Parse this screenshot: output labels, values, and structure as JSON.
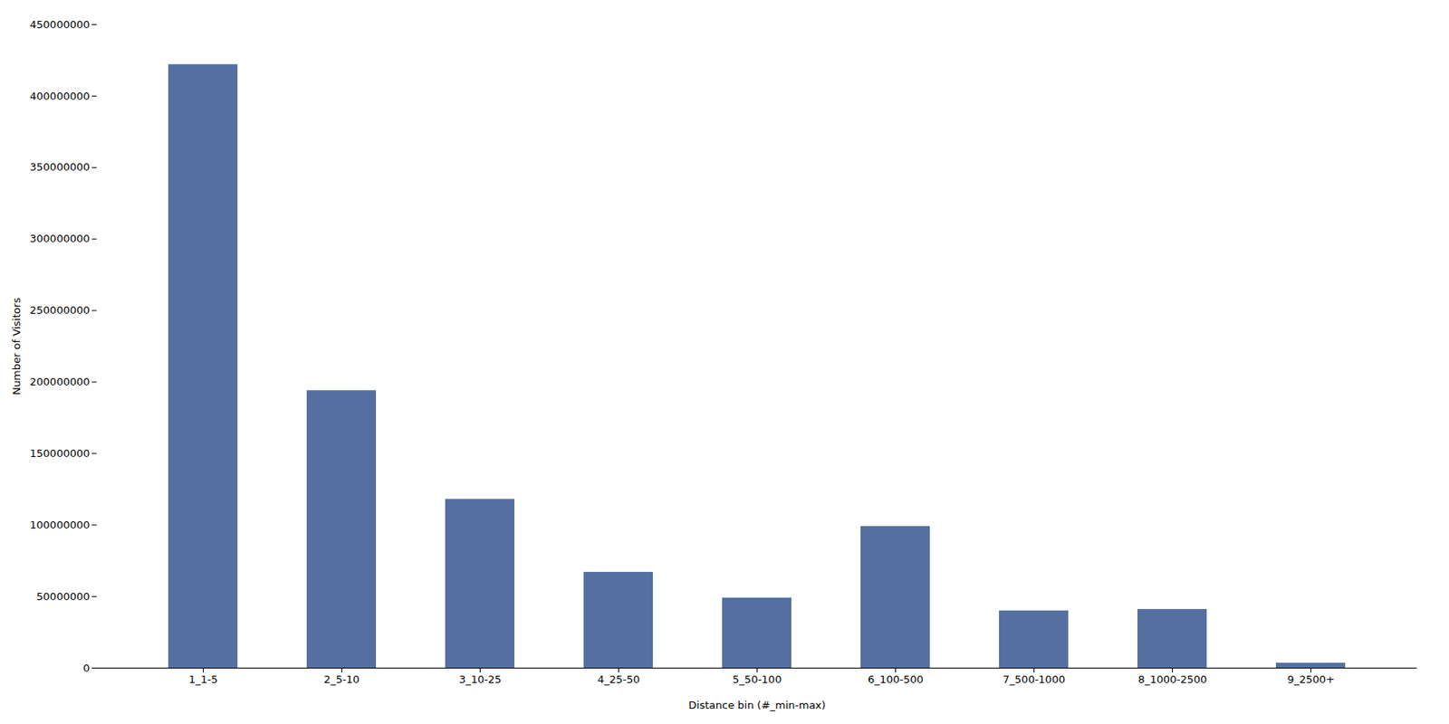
{
  "chart_data": {
    "type": "bar",
    "categories": [
      "1_1-5",
      "2_5-10",
      "3_10-25",
      "4_25-50",
      "5_50-100",
      "6_100-500",
      "7_500-1000",
      "8_1000-2500",
      "9_2500+"
    ],
    "values": [
      422000000,
      194000000,
      118000000,
      67000000,
      49000000,
      99000000,
      40000000,
      41000000,
      3500000
    ],
    "color": "#5570a0",
    "xlabel": "Distance bin (#_min-max)",
    "ylabel": "Number of Visitors",
    "ylim": [
      0,
      450000000
    ],
    "yticks": [
      0,
      50000000,
      100000000,
      150000000,
      200000000,
      250000000,
      300000000,
      350000000,
      400000000,
      450000000
    ],
    "grid": false
  }
}
